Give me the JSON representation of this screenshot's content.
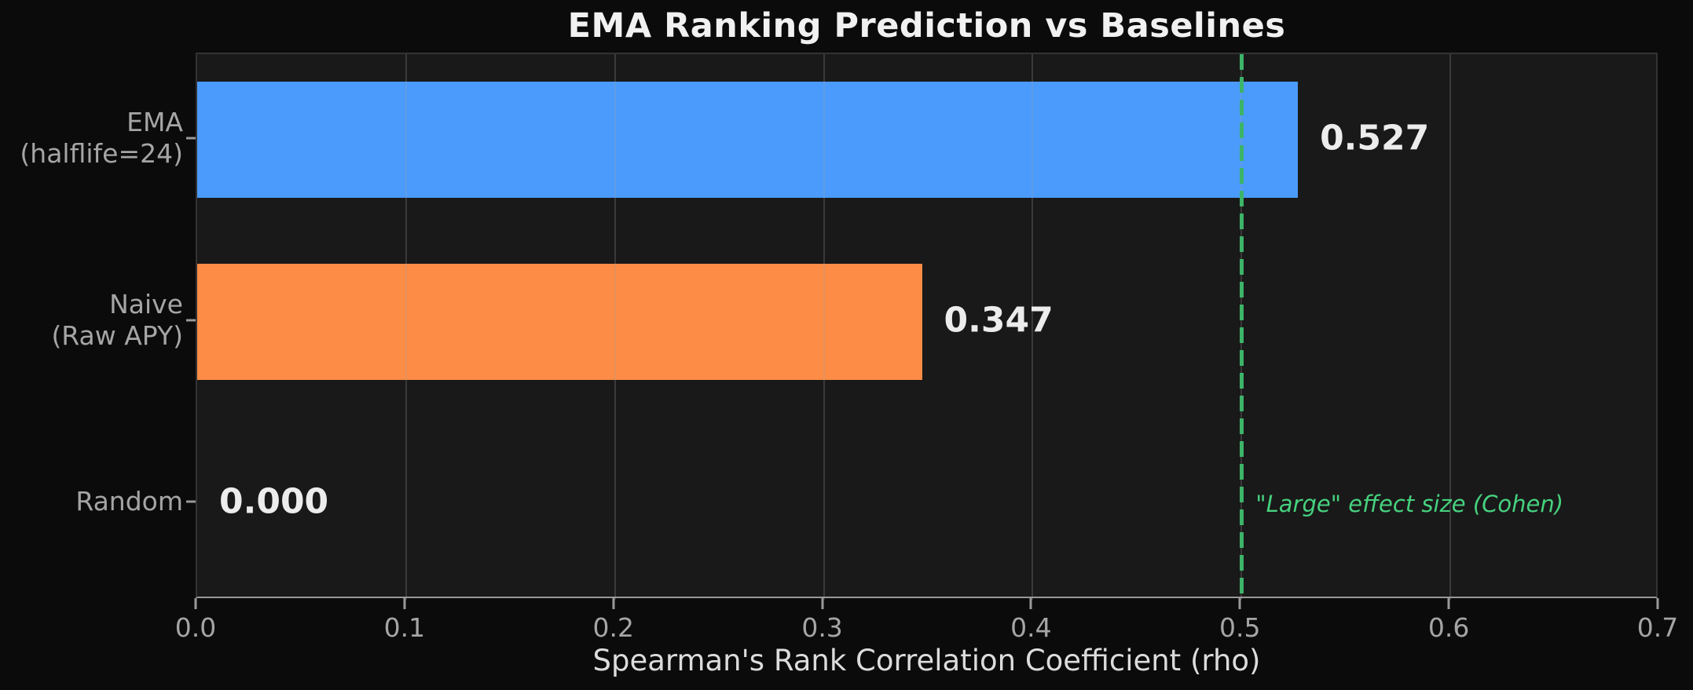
{
  "chart_data": {
    "type": "bar",
    "orientation": "horizontal",
    "title": "EMA Ranking Prediction vs Baselines",
    "xlabel": "Spearman's Rank Correlation Coefficient (rho)",
    "categories": [
      {
        "lines": [
          "EMA",
          "(halflife=24)"
        ]
      },
      {
        "lines": [
          "Naive",
          "(Raw APY)"
        ]
      },
      {
        "lines": [
          "Random"
        ]
      }
    ],
    "values": [
      0.527,
      0.347,
      0.0
    ],
    "value_labels": [
      "0.527",
      "0.347",
      "0.000"
    ],
    "bar_colors": [
      "#4a9bfc",
      "#fc8c46",
      null
    ],
    "xlim": [
      0,
      0.7
    ],
    "xticks": [
      "0.0",
      "0.1",
      "0.2",
      "0.3",
      "0.4",
      "0.5",
      "0.6",
      "0.7"
    ],
    "grid": "vertical",
    "legend": "none",
    "reference_line": {
      "x": 0.5,
      "style": "dashed",
      "color": "#3cb468",
      "label": "\"Large\" effect size (Cohen)",
      "label_color": "#46d17e"
    }
  },
  "colors": {
    "figure_background": "#0b0b0b",
    "plot_background": "#191919",
    "title_text": "#f1f1f1",
    "axis_text": "#a5a5a5",
    "value_text": "#ececec",
    "grid": "rgba(160,160,160,0.25)"
  }
}
